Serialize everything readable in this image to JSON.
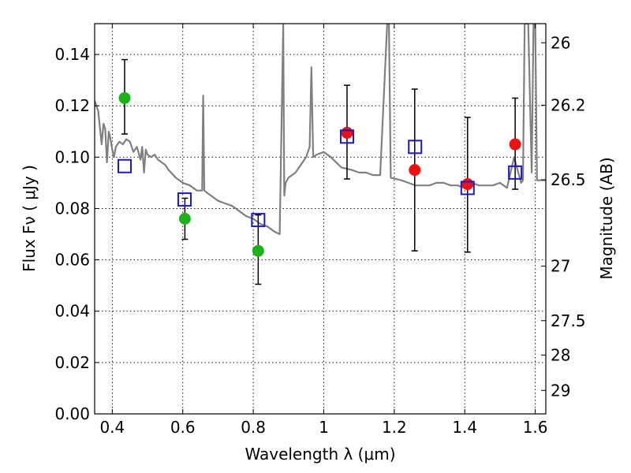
{
  "chart_data": {
    "type": "scatter",
    "title": "",
    "xlabel": "Wavelength  λ (μm)",
    "ylabel": "Flux  Fν  ( μJy )",
    "y2label": "Magnitude (AB)",
    "xlim": [
      0.35,
      1.63
    ],
    "ylim": [
      0.0,
      0.152
    ],
    "grid": true,
    "x_ticks": [
      0.4,
      0.6,
      0.8,
      1.0,
      1.2,
      1.4,
      1.6
    ],
    "x_tick_labels": [
      "0.4",
      "0.6",
      "0.8",
      "1",
      "1.2",
      "1.4",
      "1.6"
    ],
    "y_ticks": [
      0.0,
      0.02,
      0.04,
      0.06,
      0.08,
      0.1,
      0.12,
      0.14
    ],
    "y_tick_labels": [
      "0.00",
      "0.02",
      "0.04",
      "0.06",
      "0.08",
      "0.10",
      "0.12",
      "0.14"
    ],
    "y2_ticks": [
      26,
      26.2,
      26.5,
      27,
      27.5,
      28,
      29
    ],
    "y2_tick_labels": [
      "26",
      "26.2",
      "26.5",
      "27",
      "27.5",
      "28",
      "29"
    ],
    "colors": {
      "green": "#1ab31a",
      "red": "#ee1111",
      "blue": "#1a1acc",
      "spectrum": "#808080",
      "errorbar": "#000000"
    },
    "series": [
      {
        "marker": "circle-green",
        "x": [
          0.435,
          0.606,
          0.814
        ],
        "y": [
          0.123,
          0.076,
          0.0635
        ],
        "yerr_low": [
          0.109,
          0.068,
          0.0505
        ],
        "yerr_high": [
          0.138,
          0.084,
          0.0775
        ]
      },
      {
        "marker": "circle-red",
        "x": [
          1.066,
          1.258,
          1.408,
          1.543
        ],
        "y": [
          0.1095,
          0.095,
          0.0895,
          0.105
        ],
        "yerr_low": [
          0.0915,
          0.0635,
          0.063,
          0.0875
        ],
        "yerr_high": [
          0.128,
          0.1265,
          0.1155,
          0.123
        ]
      },
      {
        "marker": "square-blue-open",
        "x": [
          0.435,
          0.605,
          0.814,
          1.066,
          1.259,
          1.408,
          1.543
        ],
        "y": [
          0.0965,
          0.0835,
          0.0755,
          0.108,
          0.104,
          0.088,
          0.094
        ]
      },
      {
        "marker": "line-spectrum",
        "x": [
          0.35,
          0.36,
          0.37,
          0.375,
          0.38,
          0.385,
          0.39,
          0.395,
          0.4,
          0.405,
          0.41,
          0.42,
          0.43,
          0.44,
          0.45,
          0.46,
          0.47,
          0.48,
          0.485,
          0.49,
          0.495,
          0.5,
          0.51,
          0.52,
          0.53,
          0.54,
          0.55,
          0.56,
          0.58,
          0.6,
          0.62,
          0.64,
          0.655,
          0.658,
          0.661,
          0.67,
          0.7,
          0.72,
          0.74,
          0.76,
          0.78,
          0.8,
          0.82,
          0.84,
          0.86,
          0.875,
          0.885,
          0.888,
          0.892,
          0.9,
          0.92,
          0.95,
          0.96,
          0.965,
          0.97,
          0.98,
          1.0,
          1.02,
          1.05,
          1.08,
          1.1,
          1.12,
          1.14,
          1.16,
          1.18,
          1.185,
          1.19,
          1.22,
          1.24,
          1.26,
          1.28,
          1.3,
          1.32,
          1.34,
          1.36,
          1.38,
          1.4,
          1.42,
          1.44,
          1.46,
          1.48,
          1.5,
          1.52,
          1.54,
          1.56,
          1.565,
          1.57,
          1.58,
          1.59,
          1.595,
          1.6,
          1.605,
          1.61,
          1.63
        ],
        "y": [
          0.122,
          0.118,
          0.105,
          0.113,
          0.111,
          0.098,
          0.11,
          0.107,
          0.103,
          0.1,
          0.104,
          0.106,
          0.105,
          0.107,
          0.106,
          0.102,
          0.104,
          0.099,
          0.104,
          0.094,
          0.103,
          0.101,
          0.1,
          0.101,
          0.099,
          0.098,
          0.097,
          0.095,
          0.092,
          0.09,
          0.089,
          0.087,
          0.087,
          0.124,
          0.087,
          0.086,
          0.083,
          0.082,
          0.081,
          0.079,
          0.077,
          0.076,
          0.074,
          0.073,
          0.071,
          0.07,
          0.152,
          0.085,
          0.09,
          0.092,
          0.094,
          0.1,
          0.104,
          0.135,
          0.1,
          0.101,
          0.102,
          0.1,
          0.096,
          0.095,
          0.094,
          0.094,
          0.093,
          0.093,
          0.152,
          0.152,
          0.092,
          0.091,
          0.09,
          0.089,
          0.089,
          0.089,
          0.09,
          0.09,
          0.089,
          0.089,
          0.088,
          0.09,
          0.089,
          0.089,
          0.089,
          0.09,
          0.088,
          0.1,
          0.09,
          0.091,
          0.152,
          0.152,
          0.094,
          0.152,
          0.152,
          0.091,
          0.091,
          0.091
        ]
      }
    ]
  }
}
